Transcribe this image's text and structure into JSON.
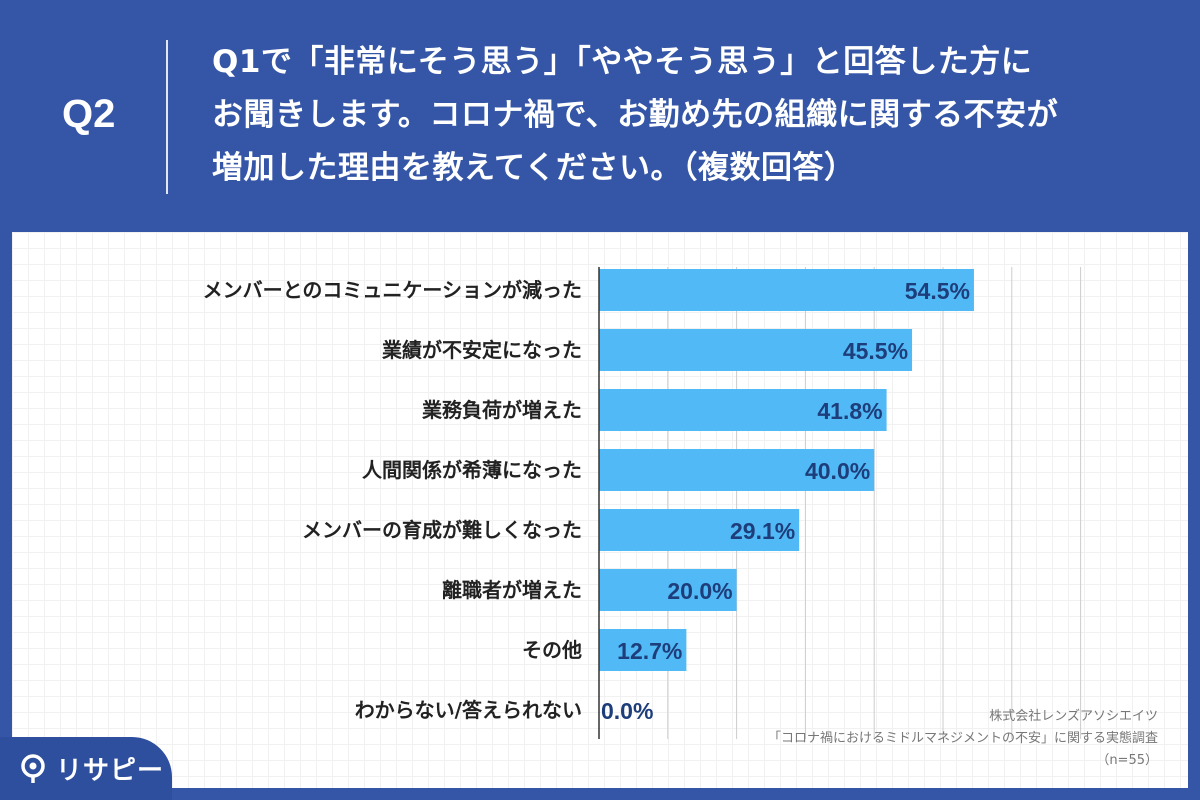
{
  "header": {
    "qnum": "Q2",
    "question_lines": [
      "Q1で「非常にそう思う」「ややそう思う」と回答した方に",
      "お聞きします。コロナ禍で、お勤め先の組織に関する不安が",
      "増加した理由を教えてください。（複数回答）"
    ]
  },
  "source": {
    "company": "株式会社レンズアソシエイツ",
    "survey": "「コロナ禍におけるミドルマネジメントの不安」に関する実態調査",
    "n": "（n=55）"
  },
  "logo": {
    "text": "リサピー",
    "icon": "pin-icon"
  },
  "colors": {
    "background": "#3556a6",
    "bar": "#52b9f7",
    "value_text": "#1d3e7a"
  },
  "chart_data": {
    "type": "bar",
    "orientation": "horizontal",
    "categories": [
      "メンバーとのコミュニケーションが減った",
      "業績が不安定になった",
      "業務負荷が増えた",
      "人間関係が希薄になった",
      "メンバーの育成が難しくなった",
      "離職者が増えた",
      "その他",
      "わからない/答えられない"
    ],
    "values": [
      54.5,
      45.5,
      41.8,
      40.0,
      29.1,
      20.0,
      12.7,
      0.0
    ],
    "value_labels": [
      "54.5%",
      "45.5%",
      "41.8%",
      "40.0%",
      "29.1%",
      "20.0%",
      "12.7%",
      "0.0%"
    ],
    "xlim": [
      0,
      75
    ],
    "grid": true
  }
}
